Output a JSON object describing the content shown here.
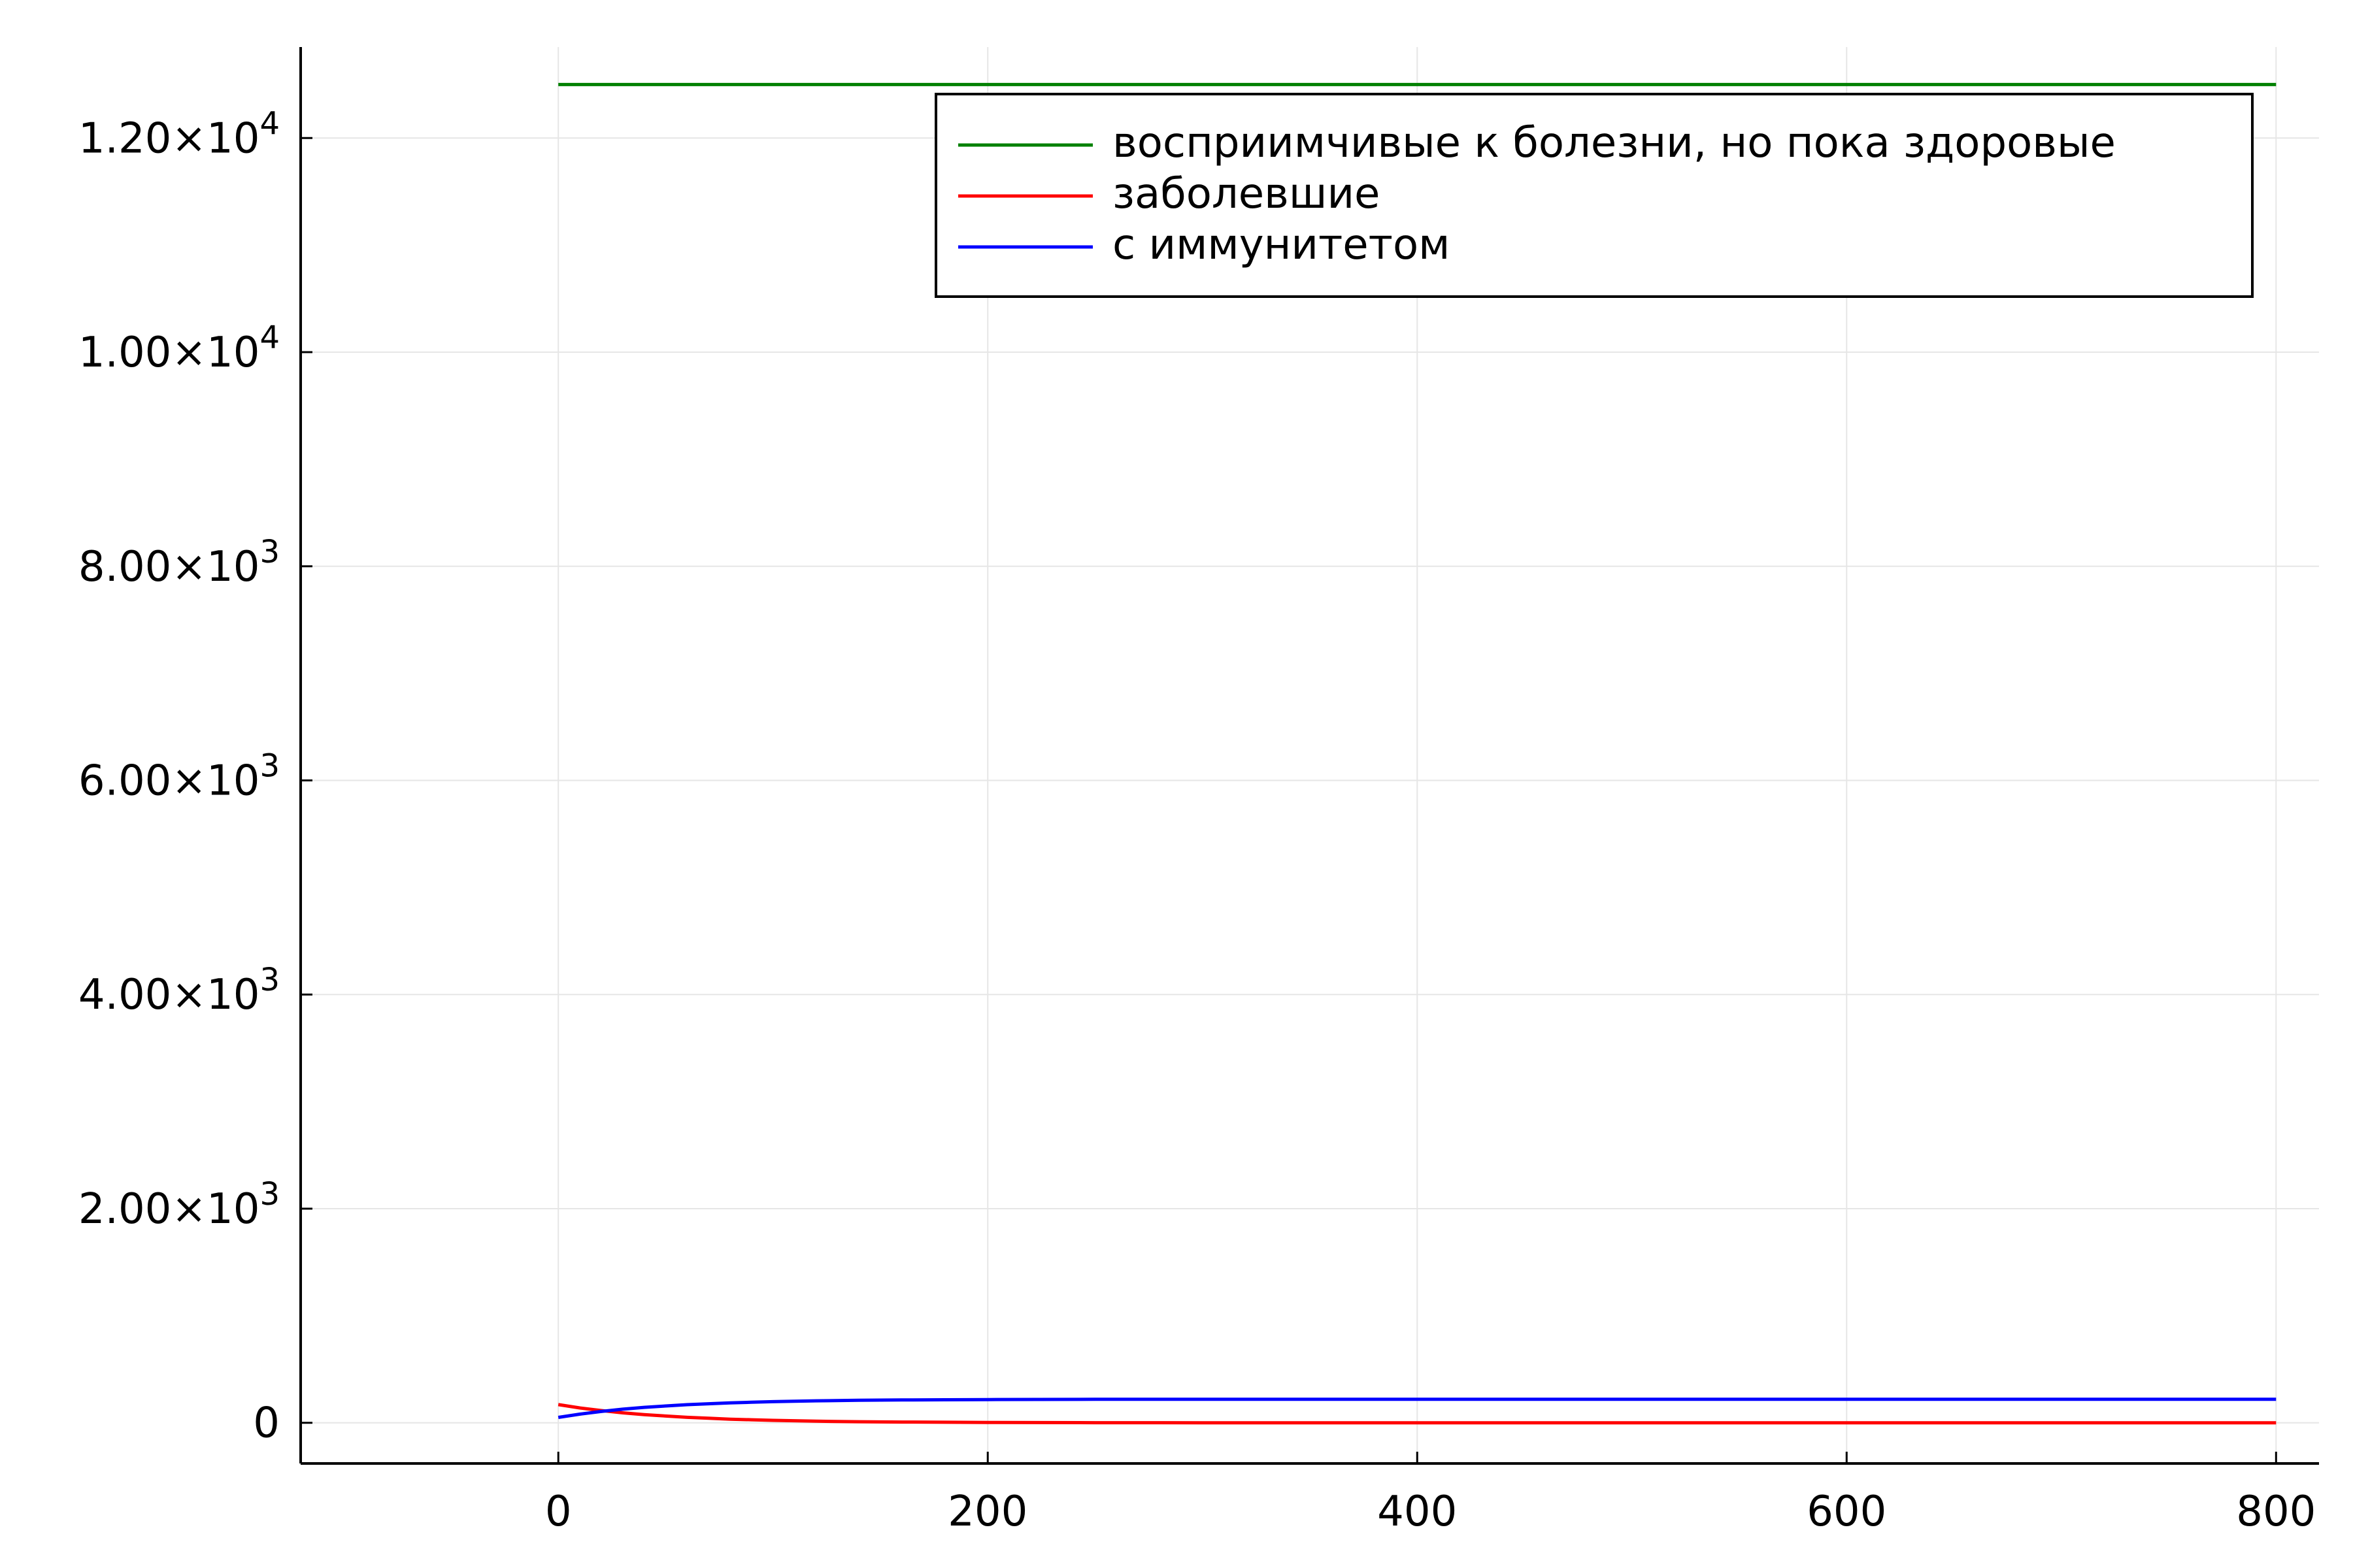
{
  "chart_data": {
    "type": "line",
    "title": "",
    "xlabel": "",
    "ylabel": "",
    "xlim": [
      -120,
      820
    ],
    "ylim": [
      -380,
      12850
    ],
    "grid": true,
    "legend_position": "top-right",
    "x_ticks": [
      {
        "value": 0,
        "label": "0"
      },
      {
        "value": 200,
        "label": "200"
      },
      {
        "value": 400,
        "label": "400"
      },
      {
        "value": 600,
        "label": "600"
      },
      {
        "value": 800,
        "label": "800"
      }
    ],
    "y_ticks": [
      {
        "value": 0,
        "label": "0"
      },
      {
        "value": 2000,
        "mantissa": "2.00×10",
        "exponent": "3"
      },
      {
        "value": 4000,
        "mantissa": "4.00×10",
        "exponent": "3"
      },
      {
        "value": 6000,
        "mantissa": "6.00×10",
        "exponent": "3"
      },
      {
        "value": 8000,
        "mantissa": "8.00×10",
        "exponent": "3"
      },
      {
        "value": 10000,
        "mantissa": "1.00×10",
        "exponent": "4"
      },
      {
        "value": 12000,
        "mantissa": "1.20×10",
        "exponent": "4"
      }
    ],
    "x": [
      0,
      10,
      20,
      30,
      40,
      50,
      60,
      70,
      80,
      90,
      100,
      120,
      140,
      160,
      180,
      200,
      250,
      300,
      400,
      500,
      600,
      700,
      800
    ],
    "series": [
      {
        "name": "восприимчивые к болезни, но пока здоровые",
        "color": "#008000",
        "values": [
          12500,
          12500,
          12500,
          12500,
          12500,
          12500,
          12500,
          12500,
          12500,
          12500,
          12500,
          12500,
          12500,
          12500,
          12500,
          12500,
          12500,
          12500,
          12500,
          12500,
          12500,
          12500,
          12500
        ]
      },
      {
        "name": "заболевшие",
        "color": "#ff0000",
        "values": [
          170,
          139,
          114,
          93,
          76,
          63,
          51,
          42,
          34,
          28,
          23,
          15,
          10,
          7,
          5,
          3,
          1,
          0,
          0,
          0,
          0,
          0,
          0
        ]
      },
      {
        "name": "с иммунитетом",
        "color": "#0000ff",
        "values": [
          50,
          81,
          106,
          127,
          144,
          157,
          169,
          178,
          186,
          192,
          197,
          205,
          210,
          213,
          215,
          217,
          219,
          220,
          220,
          220,
          220,
          220,
          220
        ]
      }
    ]
  }
}
